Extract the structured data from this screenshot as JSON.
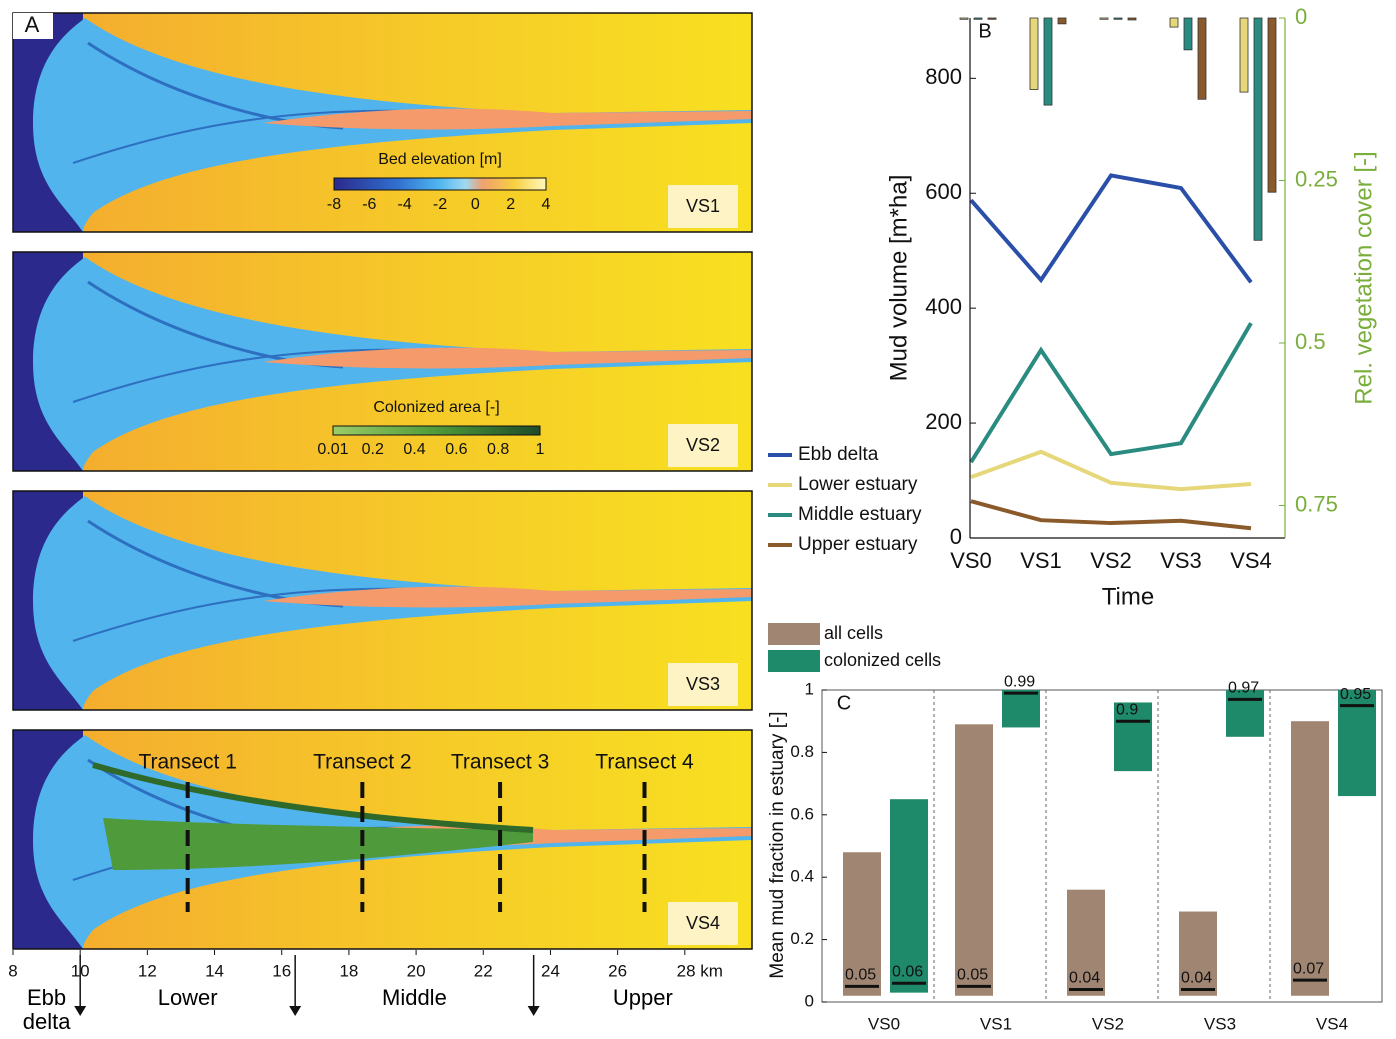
{
  "chart_data": [
    {
      "type": "map",
      "label": "A",
      "panels": [
        "VS1",
        "VS2",
        "VS3",
        "VS4"
      ],
      "colorbars": [
        {
          "title": "Bed elevation [m]",
          "lim": [
            -8,
            4
          ],
          "ticks": [
            -8,
            -6,
            -4,
            -2,
            0,
            2,
            4
          ]
        },
        {
          "title": "Colonized area [-]",
          "lim": [
            0.01,
            1
          ],
          "ticks": [
            0.01,
            0.2,
            0.4,
            0.6,
            0.8,
            1
          ]
        }
      ],
      "transects": [
        {
          "label": "Transect 1",
          "x": 13.2
        },
        {
          "label": "Transect 2",
          "x": 18.4
        },
        {
          "label": "Transect 3",
          "x": 22.5
        },
        {
          "label": "Transect 4",
          "x": 26.8
        }
      ],
      "xlim": [
        8,
        30
      ],
      "xticks": [
        8,
        10,
        12,
        14,
        16,
        18,
        20,
        22,
        24,
        26,
        {
          "value": 28,
          "label": "28 km"
        }
      ],
      "boundaries": [
        10,
        16.4,
        23.5
      ],
      "regions": [
        "Ebb delta",
        "Lower",
        "Middle",
        "Upper"
      ]
    },
    {
      "type": "line",
      "label": "B",
      "x_label": "Time",
      "y_label": "Mud volume [m*ha]",
      "y2_label": "Rel. vegetation cover [-]",
      "categories": [
        "VS0",
        "VS1",
        "VS2",
        "VS3",
        "VS4"
      ],
      "ylim": [
        0,
        905
      ],
      "yticks": [
        0,
        200,
        400,
        600,
        800
      ],
      "y2lim": [
        0,
        0.8
      ],
      "y2ticks": [
        0,
        0.25,
        0.5,
        0.75
      ],
      "y2_reversed": true,
      "y2_color": "#7aae3c",
      "series": [
        {
          "name": "Ebb delta",
          "color": "#2a4fa8",
          "values": [
            588,
            449,
            631,
            609,
            445
          ]
        },
        {
          "name": "Lower estuary",
          "color": "#e6d77a",
          "values": [
            106,
            150,
            96,
            85,
            94
          ],
          "cover": [
            0.002,
            0.11,
            0.002,
            0.014,
            0.114
          ]
        },
        {
          "name": "Middle estuary",
          "color": "#2a8c80",
          "values": [
            132,
            327,
            146,
            165,
            374
          ],
          "cover": [
            0.002,
            0.134,
            0.002,
            0.049,
            0.342
          ]
        },
        {
          "name": "Upper estuary",
          "color": "#8b5a2b",
          "values": [
            64,
            31,
            26,
            30,
            17
          ],
          "cover": [
            0.002,
            0.009,
            0.003,
            0.125,
            0.268
          ]
        }
      ]
    },
    {
      "type": "floating-bar",
      "label": "C",
      "y_label": "Mean mud fraction in estuary [-]",
      "categories": [
        "VS0",
        "VS1",
        "VS2",
        "VS3",
        "VS4"
      ],
      "ylim": [
        0,
        1
      ],
      "yticks": [
        0,
        0.2,
        0.4,
        0.6,
        0.8,
        1
      ],
      "series": [
        {
          "name": "all cells",
          "color": "#a08672",
          "low": [
            0.02,
            0.02,
            0.02,
            0.02,
            0.02
          ],
          "high": [
            0.48,
            0.89,
            0.36,
            0.29,
            0.9
          ],
          "values": [
            0.05,
            0.05,
            0.04,
            0.04,
            0.07
          ]
        },
        {
          "name": "colonized cells",
          "color": "#1e8a6a",
          "low": [
            0.03,
            0.88,
            0.74,
            0.85,
            0.66
          ],
          "high": [
            0.65,
            1,
            0.96,
            1,
            1
          ],
          "values": [
            0.06,
            0.99,
            0.9,
            0.97,
            0.95
          ]
        }
      ]
    }
  ]
}
